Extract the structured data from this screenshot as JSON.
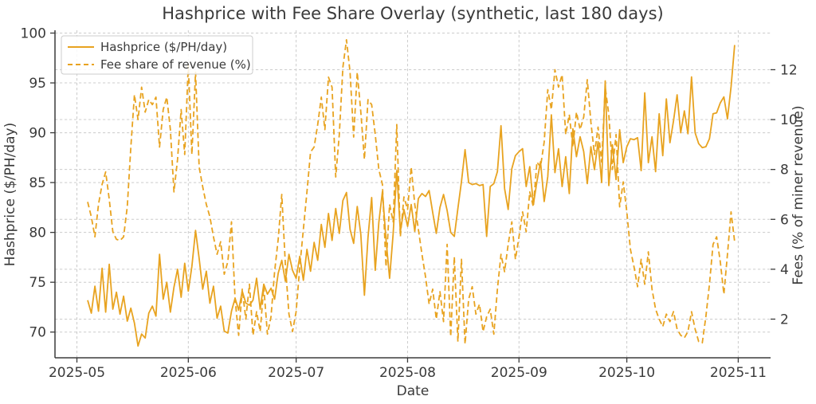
{
  "chart_data": {
    "type": "line",
    "title": "Hashprice with Fee Share Overlay (synthetic, last 180 days)",
    "xlabel": "Date",
    "ylabel_left": "Hashprice ($/PH/day)",
    "ylabel_right": "Fees (% of miner revenue)",
    "grid": true,
    "legend_position": "upper left",
    "x_start_date": "2025-05-04",
    "x_end_date": "2025-10-31",
    "x_tick_labels": [
      "2025-05",
      "2025-06",
      "2025-07",
      "2025-08",
      "2025-09",
      "2025-10",
      "2025-11"
    ],
    "x_tick_days": [
      -3,
      28,
      58,
      89,
      120,
      150,
      181
    ],
    "x_range": [
      -9.1,
      190.0
    ],
    "left_axis": {
      "ticks": [
        70,
        75,
        80,
        85,
        90,
        95,
        100
      ],
      "range": [
        67.42,
        100.28
      ]
    },
    "right_axis": {
      "ticks": [
        2,
        4,
        6,
        8,
        10,
        12
      ],
      "range": [
        0.45,
        13.58
      ]
    },
    "accent_color": "#E8A320",
    "grid_color": "#cccccc",
    "text_color": "#3a3a3a",
    "series": [
      {
        "name": "Hashprice ($/PH/day)",
        "axis": "left",
        "style": "solid",
        "color": "#E8A320",
        "values": [
          73.2,
          71.9,
          74.6,
          72.1,
          76.4,
          72.0,
          76.8,
          72.3,
          74.0,
          71.8,
          73.6,
          71.1,
          72.4,
          70.9,
          68.6,
          69.8,
          69.4,
          71.9,
          72.6,
          71.6,
          77.8,
          73.3,
          75.0,
          72.0,
          74.5,
          76.3,
          73.5,
          76.9,
          74.1,
          76.6,
          80.2,
          77.4,
          74.3,
          76.1,
          72.9,
          74.6,
          71.4,
          72.6,
          70.1,
          69.9,
          72.1,
          73.4,
          72.2,
          74.1,
          72.9,
          72.7,
          73.2,
          75.4,
          72.3,
          74.8,
          73.8,
          74.4,
          73.3,
          75.9,
          77.2,
          75.1,
          77.8,
          76.2,
          75.4,
          77.6,
          75.2,
          78.3,
          76.1,
          79.0,
          77.2,
          80.8,
          78.5,
          81.9,
          79.2,
          82.4,
          79.9,
          83.2,
          84.0,
          80.3,
          78.9,
          82.6,
          79.8,
          73.7,
          79.5,
          83.5,
          76.2,
          81.0,
          84.1,
          79.3,
          75.4,
          79.9,
          86.2,
          80.1,
          82.3,
          80.6,
          82.8,
          80.1,
          83.4,
          83.9,
          83.6,
          84.2,
          82.0,
          79.9,
          82.5,
          83.8,
          82.2,
          80.0,
          79.6,
          82.4,
          85.1,
          88.3,
          85.0,
          84.8,
          84.9,
          84.7,
          84.8,
          79.6,
          84.6,
          84.9,
          86.1,
          90.7,
          84.4,
          82.3,
          86.4,
          87.7,
          88.1,
          88.4,
          84.6,
          86.6,
          82.8,
          85.1,
          87.1,
          83.1,
          85.6,
          91.8,
          86.0,
          88.4,
          84.6,
          87.6,
          83.9,
          90.4,
          87.6,
          89.6,
          88.1,
          84.9,
          88.6,
          86.3,
          89.1,
          85.0,
          95.2,
          84.7,
          88.8,
          85.3,
          90.3,
          87.0,
          88.6,
          89.4,
          89.3,
          89.5,
          86.2,
          94.0,
          87.0,
          89.6,
          86.1,
          91.9,
          87.7,
          93.4,
          89.0,
          91.2,
          93.8,
          90.0,
          92.2,
          89.9,
          95.6,
          90.0,
          88.9,
          88.5,
          88.6,
          89.4,
          91.9,
          92.0,
          93.0,
          93.6,
          91.4,
          94.6,
          98.8
        ]
      },
      {
        "name": "Fee share of revenue (%)",
        "axis": "right",
        "style": "dashed",
        "color": "#E8A320",
        "values": [
          6.7,
          6.1,
          5.3,
          6.6,
          7.4,
          7.9,
          6.8,
          5.5,
          5.2,
          5.15,
          5.3,
          6.5,
          8.9,
          11.0,
          10.0,
          11.3,
          10.3,
          10.8,
          10.6,
          10.9,
          8.9,
          10.4,
          10.9,
          9.6,
          7.1,
          8.4,
          10.4,
          8.6,
          12.2,
          8.6,
          11.9,
          8.1,
          7.3,
          6.6,
          6.1,
          5.3,
          4.6,
          5.1,
          3.8,
          4.3,
          5.9,
          2.8,
          1.35,
          3.2,
          2.0,
          3.4,
          1.35,
          2.3,
          1.5,
          3.3,
          1.4,
          2.1,
          3.9,
          5.2,
          7.0,
          4.2,
          2.2,
          1.5,
          2.3,
          4.1,
          5.6,
          7.1,
          8.7,
          8.9,
          9.8,
          10.9,
          9.6,
          11.7,
          11.3,
          7.7,
          9.4,
          12.1,
          13.2,
          11.9,
          9.3,
          11.9,
          10.3,
          8.4,
          10.8,
          10.6,
          9.4,
          8.0,
          7.4,
          4.1,
          6.6,
          5.9,
          9.8,
          5.3,
          6.9,
          6.4,
          8.1,
          6.6,
          5.6,
          4.6,
          3.7,
          2.6,
          3.2,
          2.0,
          3.1,
          1.9,
          5.0,
          1.3,
          4.5,
          1.1,
          4.4,
          1.0,
          2.8,
          3.3,
          2.2,
          2.6,
          1.5,
          2.1,
          2.4,
          1.4,
          3.2,
          4.6,
          3.9,
          5.0,
          5.9,
          4.4,
          5.3,
          6.3,
          5.5,
          7.1,
          6.5,
          8.3,
          8.1,
          9.1,
          11.2,
          10.4,
          12.0,
          11.3,
          11.8,
          9.4,
          10.2,
          8.9,
          10.3,
          9.6,
          10.1,
          11.6,
          9.9,
          8.6,
          9.7,
          8.3,
          11.3,
          10.2,
          8.0,
          9.4,
          6.5,
          7.5,
          6.3,
          4.8,
          4.1,
          3.3,
          4.4,
          3.4,
          4.7,
          3.2,
          2.4,
          2.0,
          1.7,
          2.2,
          1.9,
          2.3,
          1.6,
          1.35,
          1.25,
          1.5,
          2.3,
          1.6,
          1.1,
          1.05,
          2.1,
          3.4,
          5.0,
          5.3,
          4.3,
          3.0,
          4.6,
          6.3,
          5.1
        ]
      }
    ]
  }
}
